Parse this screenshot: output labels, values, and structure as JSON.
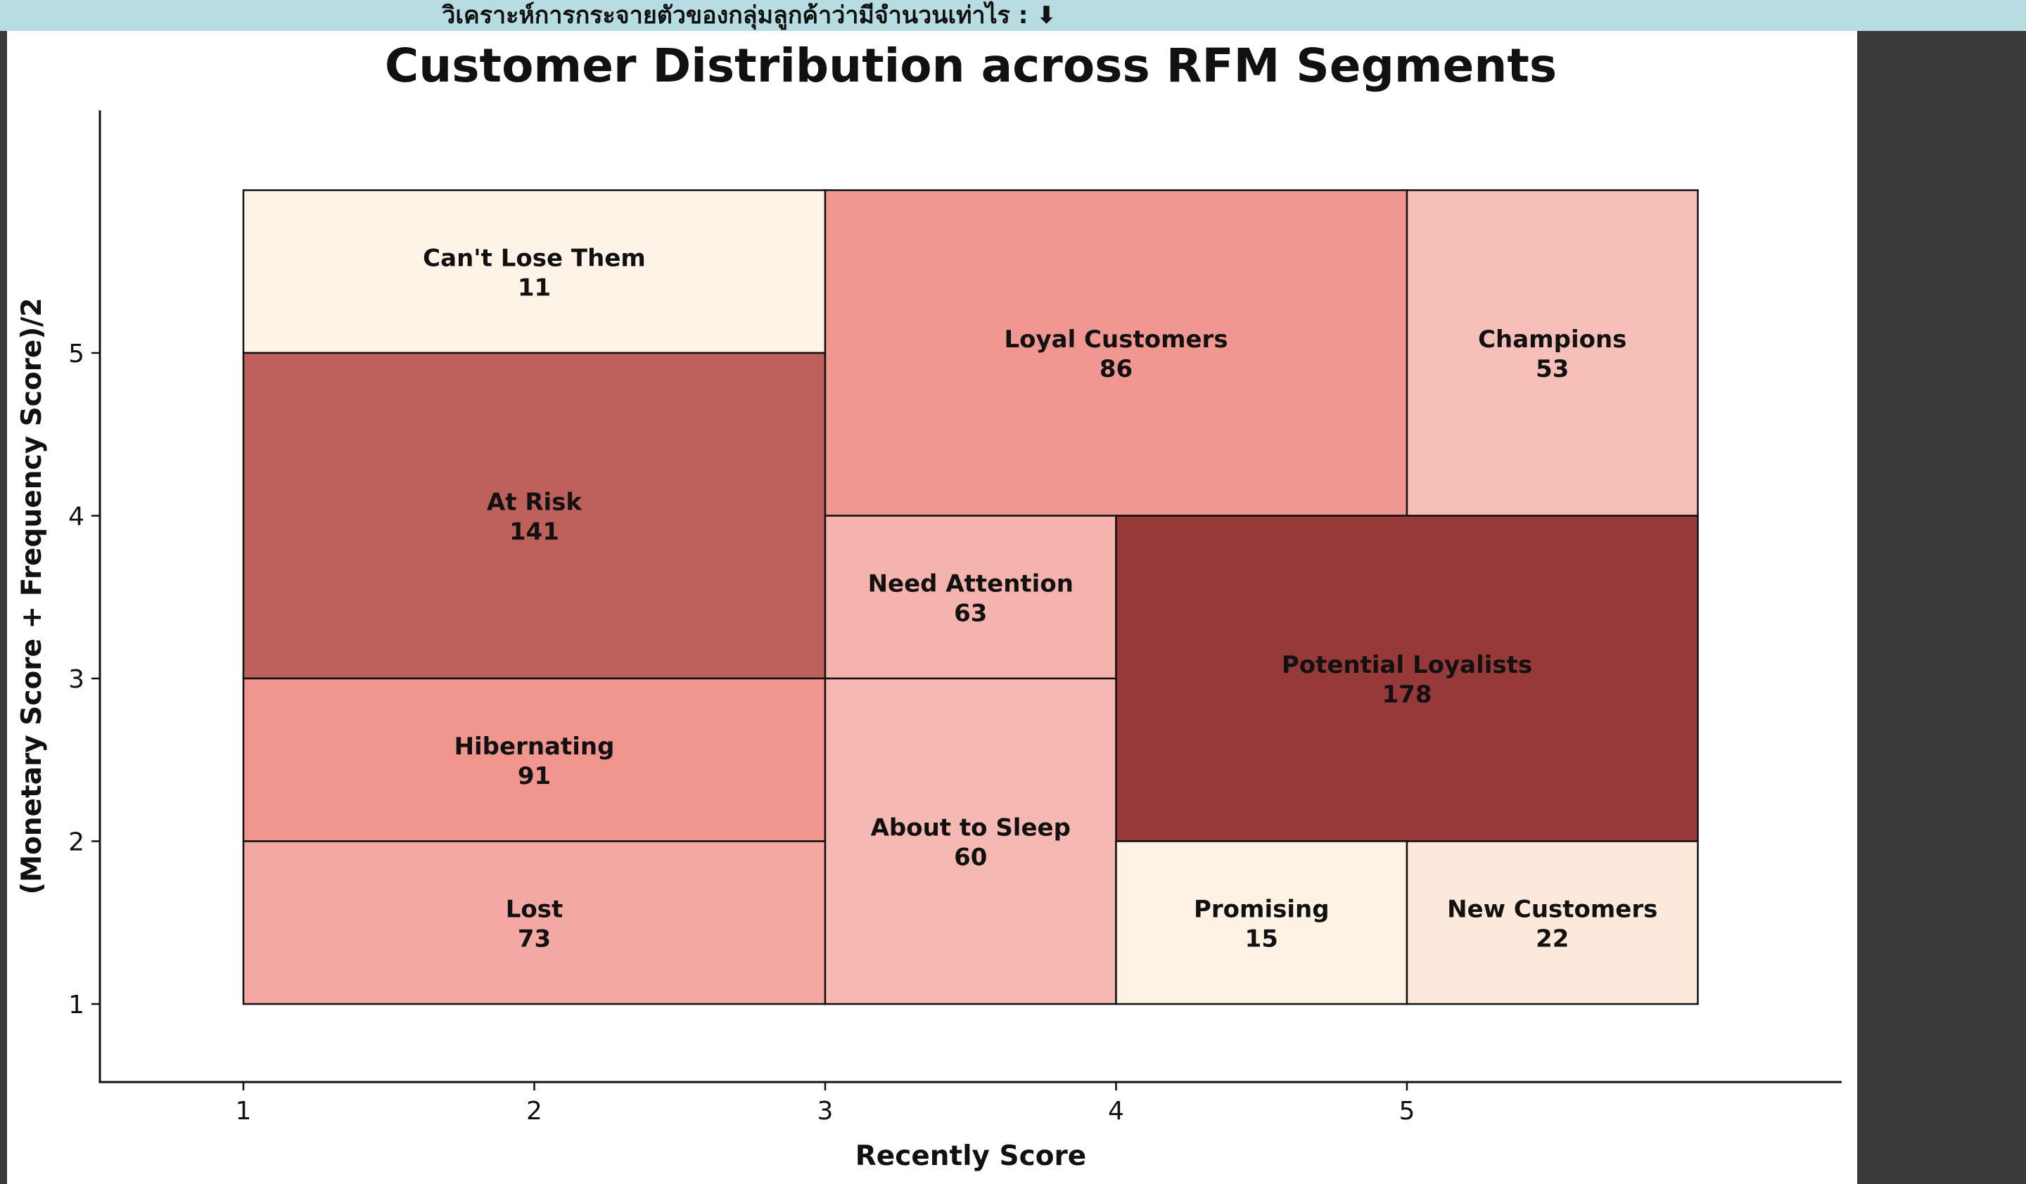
{
  "banner": {
    "text": "วิเคราะห์การกระจายตัวของกลุ่มลูกค้าว่ามีจำนวนเท่าไร :",
    "icon": "down-arrow-icon",
    "icon_glyph": "⬇",
    "background": "#b7dde3"
  },
  "chart_data": {
    "type": "treemap-grid",
    "title": "Customer Distribution across RFM Segments",
    "xlabel": "Recently Score",
    "ylabel": "(Monetary Score + Frequency Score)/2",
    "xlim": [
      0.5,
      7
    ],
    "ylim": [
      0.5,
      6.5
    ],
    "xticks": [
      1,
      2,
      3,
      4,
      5
    ],
    "yticks": [
      1,
      2,
      3,
      4,
      5
    ],
    "grid": false,
    "segments": [
      {
        "name": "Can't Lose Them",
        "count": 11,
        "x0": 1,
        "x1": 3,
        "y0": 5,
        "y1": 6,
        "color": "#fdf4e7"
      },
      {
        "name": "At Risk",
        "count": 141,
        "x0": 1,
        "x1": 3,
        "y0": 3,
        "y1": 5,
        "color": "#be605c"
      },
      {
        "name": "Hibernating",
        "count": 91,
        "x0": 1,
        "x1": 3,
        "y0": 2,
        "y1": 3,
        "color": "#f1958f"
      },
      {
        "name": "Lost",
        "count": 73,
        "x0": 1,
        "x1": 3,
        "y0": 1,
        "y1": 2,
        "color": "#f3a8a3"
      },
      {
        "name": "Loyal Customers",
        "count": 86,
        "x0": 3,
        "x1": 5,
        "y0": 4,
        "y1": 6,
        "color": "#f09792"
      },
      {
        "name": "Champions",
        "count": 53,
        "x0": 5,
        "x1": 6,
        "y0": 4,
        "y1": 6,
        "color": "#f6c0b8"
      },
      {
        "name": "Need Attention",
        "count": 63,
        "x0": 3,
        "x1": 4,
        "y0": 3,
        "y1": 4,
        "color": "#f5b3ad"
      },
      {
        "name": "Potential Loyalists",
        "count": 178,
        "x0": 4,
        "x1": 6,
        "y0": 2,
        "y1": 4,
        "color": "#963938"
      },
      {
        "name": "About to Sleep",
        "count": 60,
        "x0": 3,
        "x1": 4,
        "y0": 1,
        "y1": 3,
        "color": "#f5b8b2"
      },
      {
        "name": "Promising",
        "count": 15,
        "x0": 4,
        "x1": 5,
        "y0": 1,
        "y1": 2,
        "color": "#fef2e5"
      },
      {
        "name": "New Customers",
        "count": 22,
        "x0": 5,
        "x1": 6,
        "y0": 1,
        "y1": 2,
        "color": "#fce9db"
      }
    ]
  }
}
